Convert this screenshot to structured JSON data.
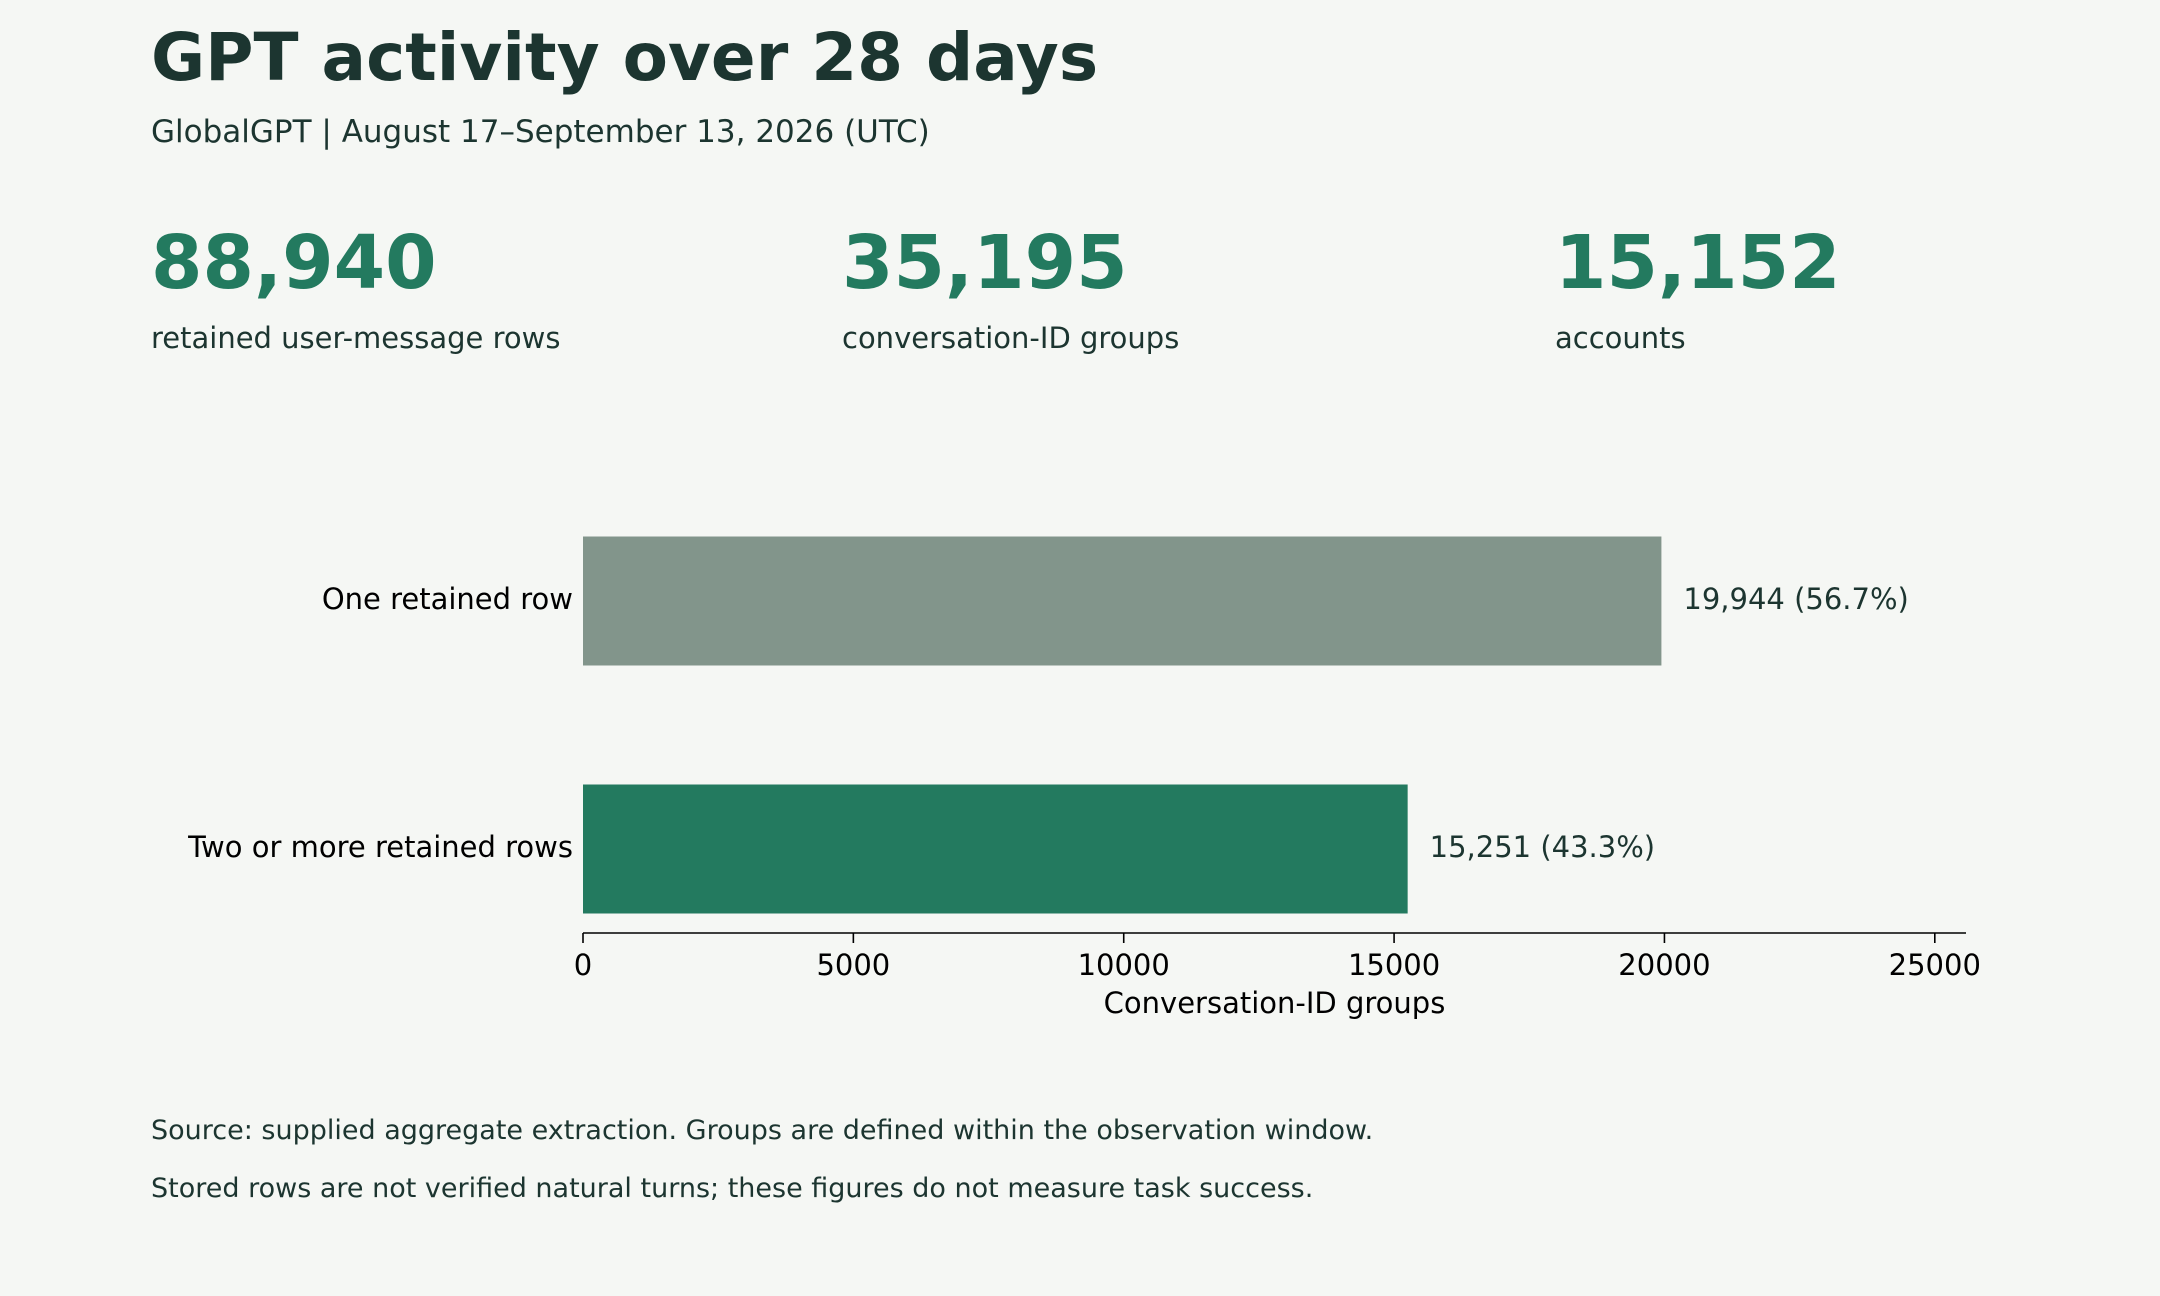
{
  "header": {
    "title": "GPT activity over 28 days",
    "subtitle": "GlobalGPT | August 17–September 13, 2026 (UTC)"
  },
  "kpis": [
    {
      "value": "88,940",
      "label": "retained user-message rows"
    },
    {
      "value": "35,195",
      "label": "conversation-ID groups"
    },
    {
      "value": "15,152",
      "label": "accounts"
    }
  ],
  "chart_data": {
    "type": "bar",
    "orientation": "horizontal",
    "categories": [
      "One retained row",
      "Two or more retained rows"
    ],
    "values": [
      19944,
      15251
    ],
    "value_labels": [
      "19,944  (56.7%)",
      "15,251  (43.3%)"
    ],
    "colors": [
      "#82958b",
      "#237a5f"
    ],
    "xlabel": "Conversation-ID groups",
    "ylabel": "",
    "xlim": [
      0,
      25577
    ],
    "xticks": [
      0,
      5000,
      10000,
      15000,
      20000,
      25000
    ],
    "xtick_labels": [
      "0",
      "5000",
      "10000",
      "15000",
      "20000",
      "25000"
    ],
    "grid": false,
    "legend": "none"
  },
  "footer": {
    "notes": [
      "Source: supplied aggregate extraction. Groups are defined within the observation window.",
      "Stored rows are not verified natural turns; these figures do not measure task success."
    ]
  }
}
